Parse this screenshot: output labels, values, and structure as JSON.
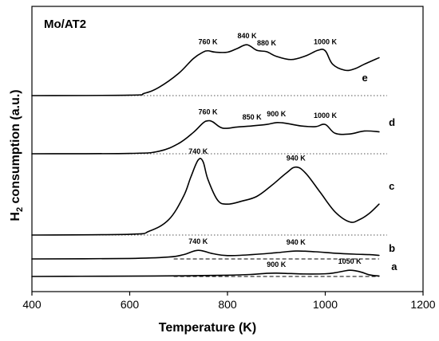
{
  "chart_data": {
    "type": "line",
    "title": "Mo/AT2",
    "xlabel": "Temperature (K)",
    "ylabel": "H2 consumption (a.u.)",
    "ylabel_main": "H",
    "ylabel_sub": "2",
    "ylabel_rest": " consumption (a.u.)",
    "xlim": [
      400,
      1200
    ],
    "x_ticks": [
      400,
      600,
      800,
      1000,
      1200
    ],
    "x_tick_labels": [
      "400",
      "600",
      "800",
      "1000",
      "1200"
    ],
    "y_ticks_shown": false,
    "grid": false,
    "series": [
      {
        "name": "a",
        "x": [
          400,
          500,
          600,
          700,
          800,
          850,
          880,
          900,
          930,
          960,
          1000,
          1020,
          1040,
          1050,
          1060,
          1075,
          1090,
          1110
        ],
        "y": [
          0,
          0.01,
          0.015,
          0.03,
          0.06,
          0.1,
          0.15,
          0.16,
          0.14,
          0.12,
          0.13,
          0.18,
          0.27,
          0.3,
          0.28,
          0.2,
          0.08,
          0.02
        ],
        "peak_labels": [
          {
            "x": 900,
            "text": "900 K"
          },
          {
            "x": 1050,
            "text": "1050 K"
          }
        ]
      },
      {
        "name": "b",
        "x": [
          400,
          600,
          680,
          710,
          740,
          770,
          800,
          850,
          900,
          940,
          980,
          1020,
          1060,
          1090,
          1110
        ],
        "y": [
          0,
          0.02,
          0.08,
          0.18,
          0.36,
          0.22,
          0.14,
          0.18,
          0.26,
          0.33,
          0.3,
          0.24,
          0.2,
          0.18,
          0.15
        ],
        "peak_labels": [
          {
            "x": 740,
            "text": "740 K"
          },
          {
            "x": 940,
            "text": "940 K"
          }
        ]
      },
      {
        "name": "c",
        "x": [
          400,
          600,
          640,
          680,
          710,
          725,
          740,
          750,
          760,
          780,
          800,
          830,
          860,
          890,
          920,
          940,
          960,
          990,
          1020,
          1050,
          1070,
          1090,
          1110
        ],
        "y": [
          0,
          0.01,
          0.05,
          0.2,
          0.5,
          0.75,
          0.97,
          0.95,
          0.72,
          0.45,
          0.4,
          0.44,
          0.5,
          0.64,
          0.8,
          0.88,
          0.8,
          0.55,
          0.3,
          0.17,
          0.2,
          0.28,
          0.4
        ],
        "peak_labels": [
          {
            "x": 740,
            "text": "740 K"
          },
          {
            "x": 940,
            "text": "940 K"
          }
        ]
      },
      {
        "name": "d",
        "x": [
          400,
          600,
          660,
          700,
          730,
          750,
          760,
          770,
          790,
          820,
          850,
          880,
          900,
          920,
          950,
          980,
          1000,
          1020,
          1050,
          1080,
          1110
        ],
        "y": [
          0,
          0.01,
          0.07,
          0.28,
          0.58,
          0.84,
          0.9,
          0.87,
          0.7,
          0.73,
          0.76,
          0.8,
          0.85,
          0.83,
          0.76,
          0.74,
          0.8,
          0.56,
          0.54,
          0.62,
          0.6
        ],
        "peak_labels": [
          {
            "x": 760,
            "text": "760 K"
          },
          {
            "x": 850,
            "text": "850 K"
          },
          {
            "x": 900,
            "text": "900 K"
          },
          {
            "x": 1000,
            "text": "1000 K"
          }
        ]
      },
      {
        "name": "e",
        "x": [
          400,
          600,
          630,
          660,
          700,
          730,
          750,
          760,
          775,
          800,
          820,
          840,
          860,
          880,
          900,
          930,
          960,
          985,
          1000,
          1015,
          1040,
          1060,
          1080,
          1110
        ],
        "y": [
          0,
          0.01,
          0.05,
          0.18,
          0.48,
          0.8,
          0.94,
          0.97,
          0.94,
          0.94,
          1.02,
          1.1,
          0.98,
          0.95,
          0.85,
          0.78,
          0.86,
          0.98,
          0.97,
          0.68,
          0.55,
          0.58,
          0.68,
          0.82
        ],
        "peak_labels": [
          {
            "x": 760,
            "text": "760 K"
          },
          {
            "x": 840,
            "text": "840 K"
          },
          {
            "x": 880,
            "text": "880 K"
          },
          {
            "x": 1000,
            "text": "1000 K"
          }
        ]
      }
    ],
    "baseline_styles": {
      "a": "dashed",
      "b": "dashed",
      "c": "dotted",
      "d": "dotted",
      "e": "dotted"
    },
    "legend": "curve letters placed at right end of each trace"
  }
}
